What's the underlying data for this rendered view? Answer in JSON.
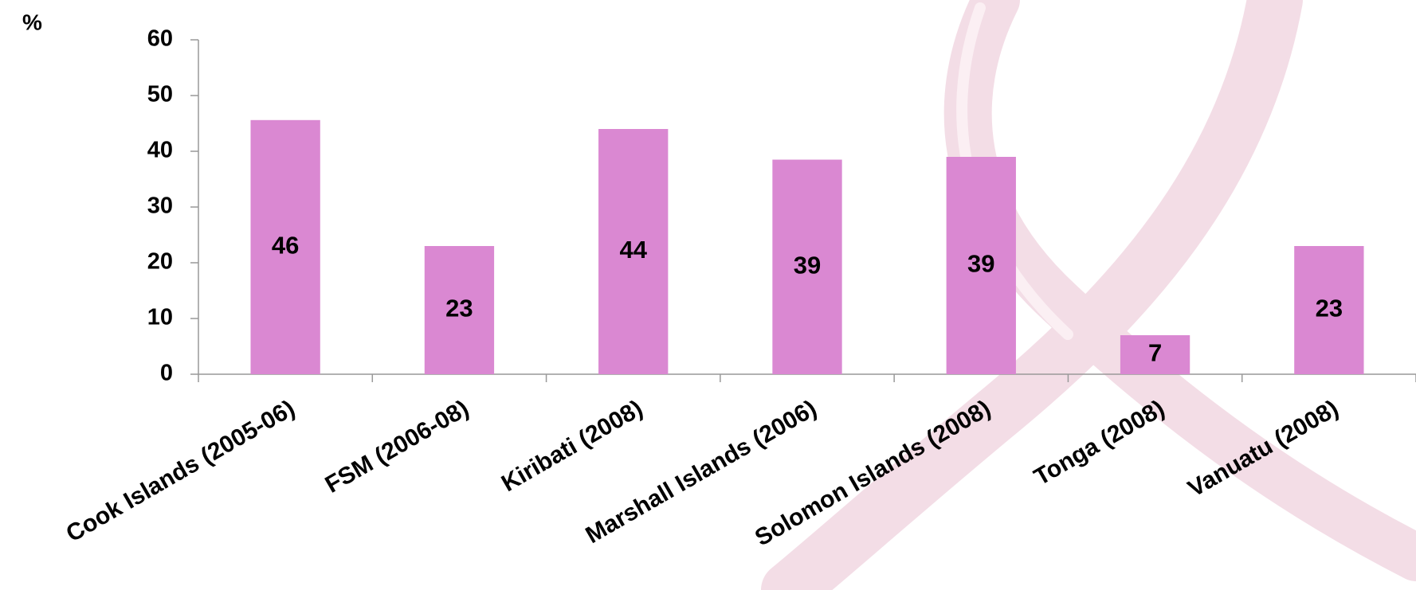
{
  "chart_data": {
    "type": "bar",
    "y_label": "%",
    "categories": [
      "Cook Islands (2005-06)",
      "FSM (2006-08)",
      "Kiribati (2008)",
      "Marshall Islands (2006)",
      "Solomon Islands (2008)",
      "Tonga (2008)",
      "Vanuatu (2008)"
    ],
    "values": [
      45.6,
      23,
      44,
      38.5,
      39,
      7,
      23
    ],
    "value_labels": [
      "46",
      "23",
      "44",
      "39",
      "39",
      "7",
      "23"
    ],
    "color": "#da88d2",
    "ylim": [
      0,
      60
    ],
    "yticks": [
      0,
      10,
      20,
      30,
      40,
      50,
      60
    ]
  }
}
